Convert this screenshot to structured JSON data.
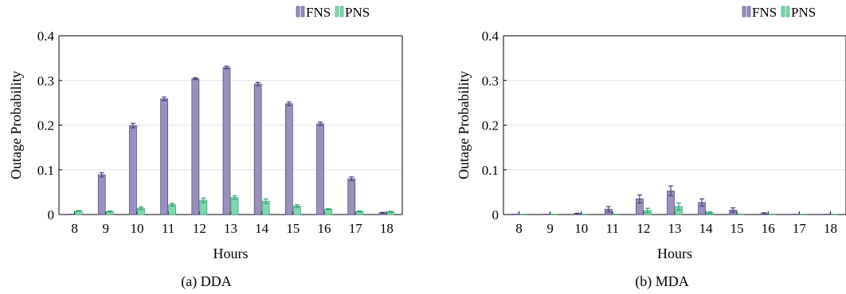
{
  "colors": {
    "fns": "#9a8fbf",
    "fns_edge": "#4a3f7a",
    "pns": "#7fd9b0",
    "pns_edge": "#2fa374",
    "grid": "#d9d9d9",
    "axis": "#000000"
  },
  "chart_data": [
    {
      "type": "bar",
      "caption": "(a) DDA",
      "xlabel": "Hours",
      "ylabel": "Outage Probability",
      "ylim": [
        0,
        0.4
      ],
      "yticks": [
        "0",
        "0.1",
        "0.2",
        "0.3",
        "0.4"
      ],
      "grid": true,
      "legend_position": "top-right",
      "categories": [
        "8",
        "9",
        "10",
        "11",
        "12",
        "13",
        "14",
        "15",
        "16",
        "17",
        "18"
      ],
      "series": [
        {
          "name": "FNS",
          "values": [
            0.0,
            0.089,
            0.199,
            0.259,
            0.304,
            0.329,
            0.292,
            0.248,
            0.203,
            0.08,
            0.004
          ],
          "errors": [
            0.0,
            0.005,
            0.005,
            0.004,
            0.002,
            0.003,
            0.004,
            0.004,
            0.004,
            0.004,
            0.001
          ]
        },
        {
          "name": "PNS",
          "values": [
            0.008,
            0.007,
            0.014,
            0.022,
            0.032,
            0.038,
            0.03,
            0.019,
            0.012,
            0.007,
            0.006
          ],
          "errors": [
            0.001,
            0.001,
            0.003,
            0.003,
            0.005,
            0.004,
            0.005,
            0.003,
            0.001,
            0.001,
            0.001
          ]
        }
      ]
    },
    {
      "type": "bar",
      "caption": "(b) MDA",
      "xlabel": "Hours",
      "ylabel": "Outage Probability",
      "ylim": [
        0,
        0.4
      ],
      "yticks": [
        "0",
        "0.1",
        "0.2",
        "0.3",
        "0.4"
      ],
      "grid": true,
      "legend_position": "top-right",
      "categories": [
        "8",
        "9",
        "10",
        "11",
        "12",
        "13",
        "14",
        "15",
        "16",
        "17",
        "18"
      ],
      "series": [
        {
          "name": "FNS",
          "values": [
            0.0,
            0.0,
            0.002,
            0.012,
            0.035,
            0.053,
            0.027,
            0.01,
            0.002,
            0.0,
            0.0
          ],
          "errors": [
            0.0,
            0.0,
            0.001,
            0.006,
            0.009,
            0.011,
            0.008,
            0.005,
            0.002,
            0.0,
            0.0
          ]
        },
        {
          "name": "PNS",
          "values": [
            0.0,
            0.0,
            0.0,
            0.0,
            0.009,
            0.018,
            0.004,
            0.0,
            0.0,
            0.0,
            0.0
          ],
          "errors": [
            0.0,
            0.0,
            0.0,
            0.0,
            0.005,
            0.008,
            0.002,
            0.0,
            0.0,
            0.0,
            0.0
          ]
        }
      ]
    }
  ]
}
